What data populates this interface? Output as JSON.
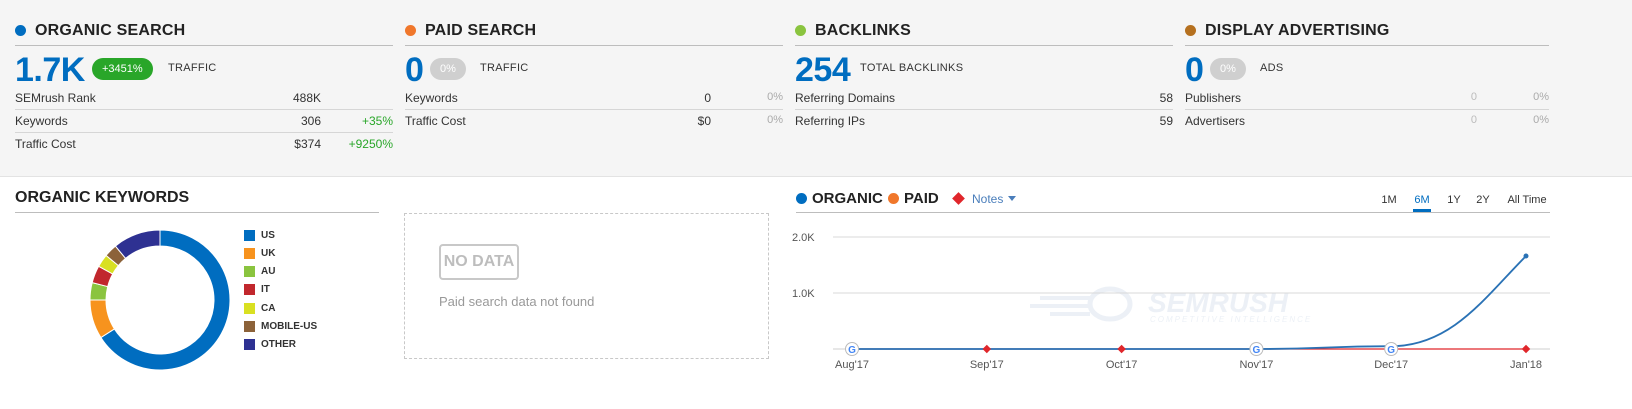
{
  "organic": {
    "title": "ORGANIC SEARCH",
    "dot_color": "#006dc0",
    "big_value": "1.7K",
    "badge": "+3451%",
    "big_label": "TRAFFIC",
    "rows": [
      {
        "label": "SEMrush Rank",
        "value": "488K",
        "change": ""
      },
      {
        "label": "Keywords",
        "value": "306",
        "change": "+35%"
      },
      {
        "label": "Traffic Cost",
        "value": "$374",
        "change": "+9250%"
      }
    ]
  },
  "paid": {
    "title": "PAID SEARCH",
    "dot_color": "#f0772b",
    "big_value": "0",
    "badge": "0%",
    "big_label": "TRAFFIC",
    "rows": [
      {
        "label": "Keywords",
        "value": "0",
        "change": "0%"
      },
      {
        "label": "Traffic Cost",
        "value": "$0",
        "change": "0%"
      }
    ]
  },
  "backlinks": {
    "title": "BACKLINKS",
    "dot_color": "#8ac43f",
    "big_value": "254",
    "big_label": "TOTAL BACKLINKS",
    "rows": [
      {
        "label": "Referring Domains",
        "value": "58"
      },
      {
        "label": "Referring IPs",
        "value": "59"
      }
    ]
  },
  "display": {
    "title": "DISPLAY ADVERTISING",
    "dot_color": "#b5701f",
    "big_value": "0",
    "badge": "0%",
    "big_label": "ADS",
    "rows": [
      {
        "label": "Publishers",
        "value": "0",
        "change": "0%"
      },
      {
        "label": "Advertisers",
        "value": "0",
        "change": "0%"
      }
    ]
  },
  "organic_keywords": {
    "title": "ORGANIC KEYWORDS",
    "legend": [
      {
        "label": "US",
        "color": "#006dc0"
      },
      {
        "label": "UK",
        "color": "#f7931e"
      },
      {
        "label": "AU",
        "color": "#8ac43f"
      },
      {
        "label": "IT",
        "color": "#c1272d"
      },
      {
        "label": "CA",
        "color": "#d9e021"
      },
      {
        "label": "MOBILE-US",
        "color": "#8c6239"
      },
      {
        "label": "OTHER",
        "color": "#2e3192"
      }
    ]
  },
  "paid_box": {
    "badge": "NO DATA",
    "message": "Paid search data not found"
  },
  "trend": {
    "organic_label": "ORGANIC",
    "organic_color": "#006dc0",
    "paid_label": "PAID",
    "paid_color": "#f0772b",
    "notes_label": "Notes",
    "ranges": [
      "1M",
      "6M",
      "1Y",
      "2Y",
      "All Time"
    ],
    "active_range": "6M",
    "watermark_brand": "SEMRUSH",
    "watermark_tagline": "COMPETITIVE INTELLIGENCE"
  },
  "chart_data": [
    {
      "type": "pie",
      "variant": "donut",
      "categories": [
        "US",
        "UK",
        "AU",
        "IT",
        "CA",
        "MOBILE-US",
        "OTHER"
      ],
      "values": [
        66,
        9,
        4,
        4,
        3,
        3,
        11
      ],
      "colors": [
        "#006dc0",
        "#f7931e",
        "#8ac43f",
        "#c1272d",
        "#d9e021",
        "#8c6239",
        "#2e3192"
      ],
      "legend": "right"
    },
    {
      "type": "line",
      "ylim": [
        0,
        2000
      ],
      "yticks": [
        {
          "value": 1000,
          "label": "1.0K"
        },
        {
          "value": 2000,
          "label": "2.0K"
        }
      ],
      "x_labels": [
        "Aug'17",
        "Sep'17",
        "Oct'17",
        "Nov'17",
        "Dec'17",
        "Jan'18"
      ],
      "grid": true,
      "series": [
        {
          "name": "ORGANIC",
          "color": "#2a72b5",
          "values": [
            0,
            0,
            0,
            0,
            50,
            1660
          ]
        },
        {
          "name": "PAID",
          "color": "#e0262b",
          "values": [
            0,
            0,
            0,
            0,
            0,
            0
          ]
        }
      ],
      "google_markers_at": [
        "Aug'17",
        "Nov'17",
        "Dec'17"
      ]
    }
  ]
}
